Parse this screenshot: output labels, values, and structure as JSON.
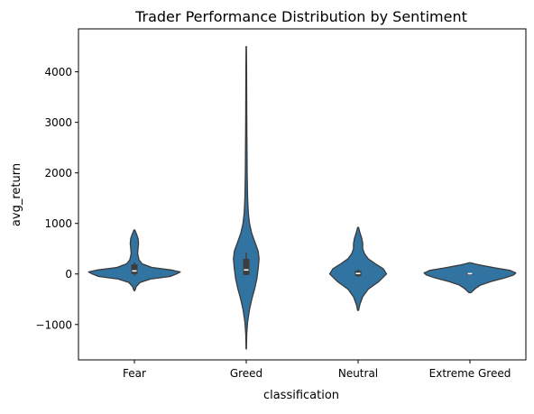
{
  "chart_data": {
    "type": "violin",
    "title": "Trader Performance Distribution by Sentiment",
    "xlabel": "classification",
    "ylabel": "avg_return",
    "categories": [
      "Fear",
      "Greed",
      "Neutral",
      "Extreme Greed"
    ],
    "ylim": [
      -1700,
      4850
    ],
    "yticks": [
      -1000,
      0,
      1000,
      2000,
      3000,
      4000
    ],
    "ytick_labels": [
      "−1000",
      "0",
      "1000",
      "2000",
      "3000",
      "4000"
    ],
    "grid": false,
    "colors": {
      "violin_fill": "#3274a1",
      "violin_edge": "#3a3a3a",
      "box": "#3d3d3d",
      "median": "#ffffff"
    },
    "violins": [
      {
        "category": "Fear",
        "min": -330,
        "max": 870,
        "q1": 0,
        "median": 60,
        "q3": 190,
        "whisker_low": -30,
        "whisker_high": 230,
        "profile": [
          [
            -330,
            0.01
          ],
          [
            -250,
            0.04
          ],
          [
            -170,
            0.12
          ],
          [
            -100,
            0.35
          ],
          [
            -50,
            0.78
          ],
          [
            0,
            0.92
          ],
          [
            40,
            1.0
          ],
          [
            80,
            0.8
          ],
          [
            130,
            0.38
          ],
          [
            200,
            0.17
          ],
          [
            280,
            0.1
          ],
          [
            400,
            0.07
          ],
          [
            520,
            0.08
          ],
          [
            600,
            0.09
          ],
          [
            700,
            0.08
          ],
          [
            780,
            0.05
          ],
          [
            870,
            0.01
          ]
        ]
      },
      {
        "category": "Greed",
        "min": -1480,
        "max": 4500,
        "q1": -20,
        "median": 80,
        "q3": 300,
        "whisker_low": -20,
        "whisker_high": 420,
        "profile": [
          [
            -1480,
            0.003
          ],
          [
            -1200,
            0.01
          ],
          [
            -950,
            0.03
          ],
          [
            -700,
            0.07
          ],
          [
            -500,
            0.12
          ],
          [
            -300,
            0.18
          ],
          [
            -100,
            0.23
          ],
          [
            100,
            0.26
          ],
          [
            300,
            0.28
          ],
          [
            450,
            0.26
          ],
          [
            600,
            0.2
          ],
          [
            800,
            0.12
          ],
          [
            1000,
            0.07
          ],
          [
            1200,
            0.045
          ],
          [
            1500,
            0.03
          ],
          [
            2000,
            0.02
          ],
          [
            3000,
            0.012
          ],
          [
            4000,
            0.007
          ],
          [
            4500,
            0.003
          ]
        ]
      },
      {
        "category": "Neutral",
        "min": -720,
        "max": 920,
        "q1": -40,
        "median": 10,
        "q3": 60,
        "whisker_low": -60,
        "whisker_high": 90,
        "profile": [
          [
            -720,
            0.01
          ],
          [
            -600,
            0.04
          ],
          [
            -450,
            0.1
          ],
          [
            -300,
            0.22
          ],
          [
            -150,
            0.45
          ],
          [
            0,
            0.62
          ],
          [
            100,
            0.55
          ],
          [
            200,
            0.38
          ],
          [
            300,
            0.22
          ],
          [
            400,
            0.14
          ],
          [
            500,
            0.1
          ],
          [
            600,
            0.1
          ],
          [
            700,
            0.08
          ],
          [
            820,
            0.04
          ],
          [
            920,
            0.01
          ]
        ]
      },
      {
        "category": "Extreme Greed",
        "min": -370,
        "max": 220,
        "q1": -5,
        "median": 5,
        "q3": 15,
        "whisker_low": -10,
        "whisker_high": 25,
        "profile": [
          [
            -370,
            0.02
          ],
          [
            -330,
            0.07
          ],
          [
            -280,
            0.13
          ],
          [
            -220,
            0.23
          ],
          [
            -150,
            0.45
          ],
          [
            -80,
            0.75
          ],
          [
            -20,
            0.95
          ],
          [
            20,
            1.0
          ],
          [
            70,
            0.88
          ],
          [
            120,
            0.55
          ],
          [
            170,
            0.25
          ],
          [
            200,
            0.1
          ],
          [
            220,
            0.02
          ]
        ]
      }
    ]
  }
}
